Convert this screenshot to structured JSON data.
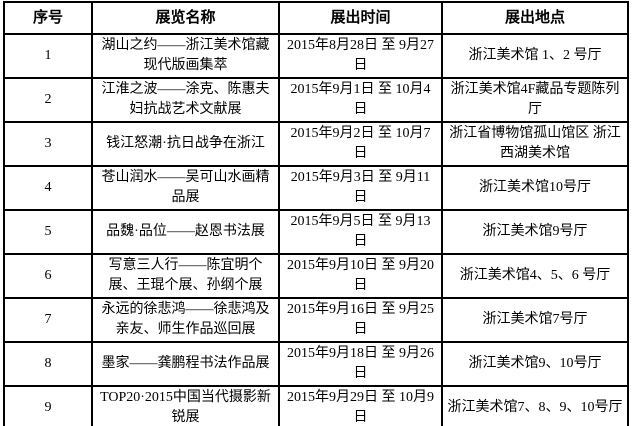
{
  "table": {
    "title": "exhibition-schedule-table",
    "headers": [
      "序号",
      "展览名称",
      "展出时间",
      "展出地点"
    ],
    "rows": [
      [
        "1",
        "湖山之约——浙江美术馆藏现代版画集萃",
        "2015年8月28日 至 9月27日",
        "浙江美术馆 1、2 号厅"
      ],
      [
        "2",
        "江淮之波——涂克、陈惠夫妇抗战艺术文献展",
        "2015年9月1日 至 10月4日",
        "浙江美术馆4F藏品专题陈列厅"
      ],
      [
        "3",
        "钱江怒潮·抗日战争在浙江",
        "2015年9月2日 至 10月7日",
        "浙江省博物馆孤山馆区 浙江西湖美术馆"
      ],
      [
        "4",
        "苍山润水——吴可山水画精品展",
        "2015年9月3日 至 9月11日",
        "浙江美术馆10号厅"
      ],
      [
        "5",
        "品魏·品位——赵恩书法展",
        "2015年9月5日 至 9月13日",
        "浙江美术馆9号厅"
      ],
      [
        "6",
        "写意三人行——陈宜明个展、王琨个展、孙纲个展",
        "2015年9月10日 至 9月20日",
        "浙江美术馆4、5、6 号厅"
      ],
      [
        "7",
        "永远的徐悲鸿——徐悲鸿及亲友、师生作品巡回展",
        "2015年9月16日 至 9月25日",
        "浙江美术馆7号厅"
      ],
      [
        "8",
        "墨家——龚鹏程书法作品展",
        "2015年9月18日 至 9月26日",
        "浙江美术馆9、10号厅"
      ],
      [
        "9",
        "TOP20·2015中国当代摄影新锐展",
        "2015年9月29日 至 10月9日",
        "浙江美术馆7、8、9、10号厅"
      ]
    ],
    "colors": {
      "border": "#000000",
      "text": "#000000",
      "background": "#ffffff"
    }
  }
}
